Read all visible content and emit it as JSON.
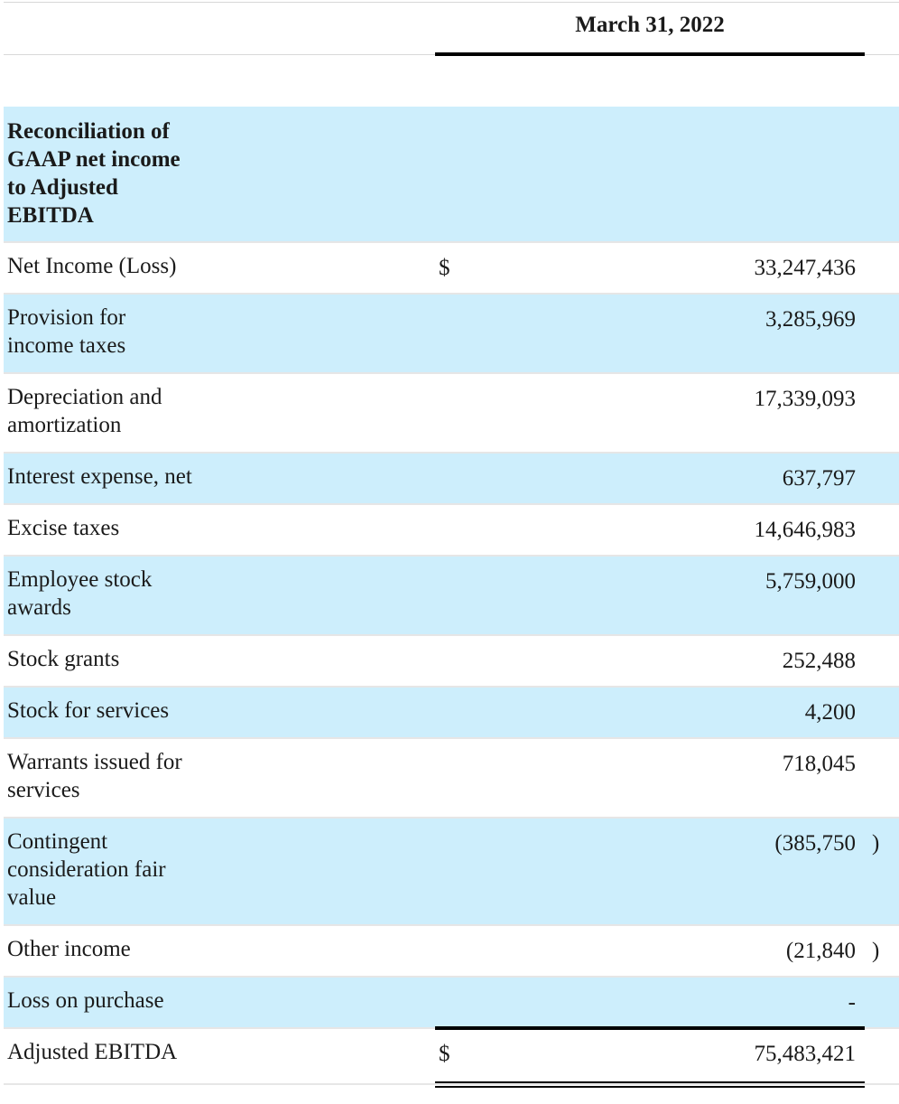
{
  "header": {
    "period": "March 31, 2022"
  },
  "section_title": "Reconciliation of GAAP net income to Adjusted EBITDA",
  "rows": [
    {
      "label": "Net Income (Loss)",
      "currency": "$",
      "value": "33,247,436",
      "close": ""
    },
    {
      "label": "Provision for income taxes",
      "currency": "",
      "value": "3,285,969",
      "close": ""
    },
    {
      "label": "Depreciation and amortization",
      "currency": "",
      "value": "17,339,093",
      "close": ""
    },
    {
      "label": "Interest expense, net",
      "currency": "",
      "value": "637,797",
      "close": ""
    },
    {
      "label": "Excise taxes",
      "currency": "",
      "value": "14,646,983",
      "close": ""
    },
    {
      "label": "Employee stock awards",
      "currency": "",
      "value": "5,759,000",
      "close": ""
    },
    {
      "label": "Stock grants",
      "currency": "",
      "value": "252,488",
      "close": ""
    },
    {
      "label": "Stock for services",
      "currency": "",
      "value": "4,200",
      "close": ""
    },
    {
      "label": "Warrants issued for services",
      "currency": "",
      "value": "718,045",
      "close": ""
    },
    {
      "label": "Contingent consideration fair value",
      "currency": "",
      "value": "(385,750",
      "close": ")"
    },
    {
      "label": "Other income",
      "currency": "",
      "value": "(21,840",
      "close": ")"
    },
    {
      "label": "Loss on purchase",
      "currency": "",
      "value": "-",
      "close": ""
    }
  ],
  "total": {
    "label": "Adjusted EBITDA",
    "currency": "$",
    "value": "75,483,421"
  },
  "colors": {
    "row_highlight": "#cdeefc",
    "divider": "#e6e6e6",
    "rule": "#000000"
  }
}
